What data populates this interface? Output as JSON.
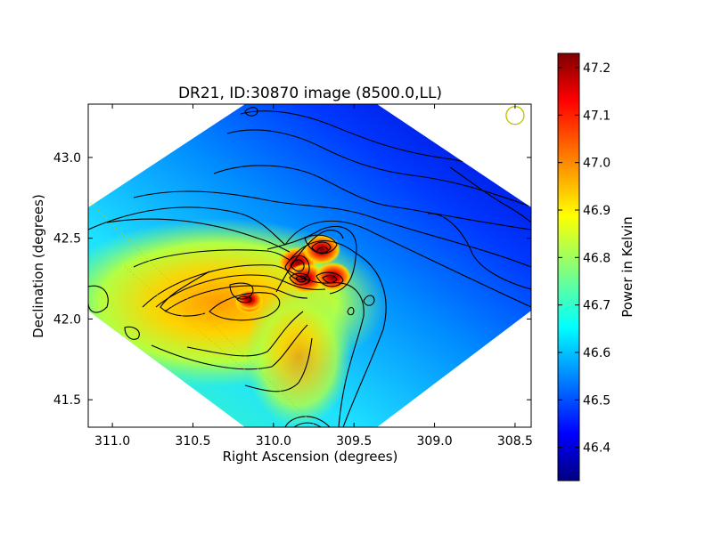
{
  "chart_data": {
    "type": "heatmap",
    "title": "DR21, ID:30870 image (8500.0,LL)",
    "xlabel": "Right Ascension (degrees)",
    "ylabel": "Declination (degrees)",
    "xlim": [
      311.15,
      308.4
    ],
    "ylim": [
      41.33,
      43.33
    ],
    "x_ticks": [
      {
        "value": 311.0,
        "label": "311.0"
      },
      {
        "value": 310.5,
        "label": "310.5"
      },
      {
        "value": 310.0,
        "label": "310.0"
      },
      {
        "value": 309.5,
        "label": "309.5"
      },
      {
        "value": 309.0,
        "label": "309.0"
      },
      {
        "value": 308.5,
        "label": "308.5"
      }
    ],
    "y_ticks": [
      {
        "value": 41.5,
        "label": "41.5"
      },
      {
        "value": 42.0,
        "label": "42.0"
      },
      {
        "value": 42.5,
        "label": "42.5"
      },
      {
        "value": 43.0,
        "label": "43.0"
      }
    ],
    "colorbar": {
      "label": "Power in Kelvin",
      "range": [
        46.33,
        47.23
      ],
      "colormap": "jet",
      "ticks": [
        {
          "value": 46.4,
          "label": "46.4"
        },
        {
          "value": 46.5,
          "label": "46.5"
        },
        {
          "value": 46.6,
          "label": "46.6"
        },
        {
          "value": 46.7,
          "label": "46.7"
        },
        {
          "value": 46.8,
          "label": "46.8"
        },
        {
          "value": 46.9,
          "label": "46.9"
        },
        {
          "value": 47.0,
          "label": "47.0"
        },
        {
          "value": 47.1,
          "label": "47.1"
        },
        {
          "value": 47.2,
          "label": "47.2"
        }
      ]
    },
    "background_level": 46.68,
    "peaks": [
      {
        "ra": 309.85,
        "dec": 42.35,
        "value": 47.22
      },
      {
        "ra": 309.8,
        "dec": 42.25,
        "value": 47.2
      },
      {
        "ra": 309.63,
        "dec": 42.26,
        "value": 47.18
      },
      {
        "ra": 309.7,
        "dec": 42.43,
        "value": 47.2
      },
      {
        "ra": 310.15,
        "dec": 42.1,
        "value": 47.02
      },
      {
        "ra": 310.15,
        "dec": 42.12,
        "value": 47.0
      }
    ],
    "beam_marker": {
      "ra": 308.5,
      "dec": 43.26,
      "color": "#bfbf00"
    }
  }
}
